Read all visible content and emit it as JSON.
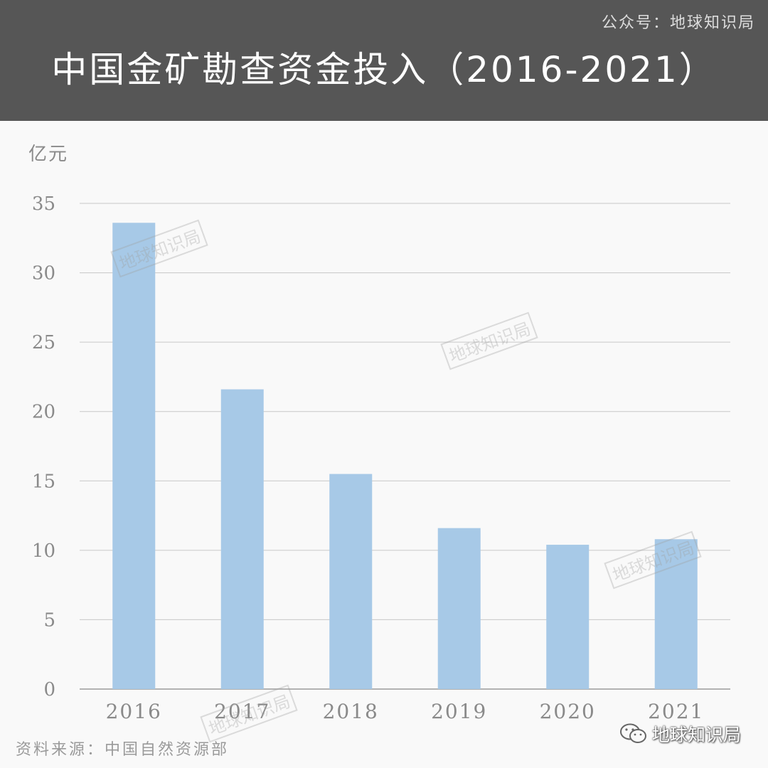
{
  "header": {
    "account": "公众号：地球知识局",
    "title": "中国金矿勘查资金投入（2016-2021）"
  },
  "footer": {
    "source": "资料来源：中国自然资源部",
    "logo_text": "地球知识局"
  },
  "watermark_text": "地球知识局",
  "colors": {
    "header_bg": "#565656",
    "bar": "#a7c9e7",
    "grid": "#c8c8c8",
    "axis_text": "#8a8a8a"
  },
  "chart_data": {
    "type": "bar",
    "title": "中国金矿勘查资金投入（2016-2021）",
    "ylabel": "亿元",
    "xlabel": "",
    "categories": [
      "2016",
      "2017",
      "2018",
      "2019",
      "2020",
      "2021"
    ],
    "values": [
      33.6,
      21.6,
      15.5,
      11.6,
      10.4,
      10.8
    ],
    "ylim": [
      0,
      35
    ],
    "yticks": [
      0,
      5,
      10,
      15,
      20,
      25,
      30,
      35
    ],
    "grid": true,
    "legend": "none"
  }
}
